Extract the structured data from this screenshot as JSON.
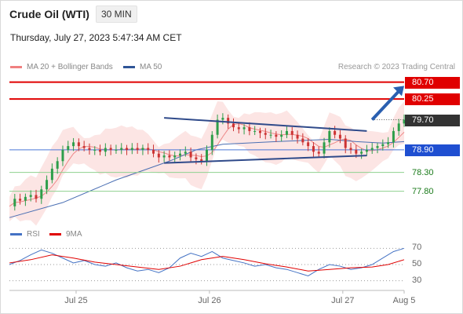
{
  "header": {
    "title": "Crude Oil (WTI)",
    "timeframe": "30 MIN",
    "datetime": "Thursday, July 27, 2023 5:47:34 AM CET"
  },
  "legend": {
    "items": [
      {
        "label": "MA 20 + Bollinger Bands",
        "color": "#f08080"
      },
      {
        "label": "MA 50",
        "color": "#2f5597"
      }
    ],
    "credit": "Research © 2023 Trading Central"
  },
  "rsi_legend": {
    "items": [
      {
        "label": "RSI",
        "color": "#4472c4"
      },
      {
        "label": "9MA",
        "color": "#e00000"
      }
    ]
  },
  "levels": [
    {
      "label": "80.70",
      "value": 80.7,
      "style": "red-box",
      "color": "#e00000"
    },
    {
      "label": "80.25",
      "value": 80.25,
      "style": "red-box",
      "color": "#e00000"
    },
    {
      "label": "79.70",
      "value": 79.7,
      "style": "dark-box",
      "color": "#333333"
    },
    {
      "label": "78.90",
      "value": 78.9,
      "style": "blue-box",
      "color": "#1f4fd1"
    },
    {
      "label": "78.30",
      "value": 78.3,
      "style": "green-text",
      "color": "#1a7a1a"
    },
    {
      "label": "77.80",
      "value": 77.8,
      "style": "green-text",
      "color": "#1a7a1a"
    }
  ],
  "chart_data": [
    {
      "type": "candlestick",
      "title": "Crude Oil (WTI)",
      "series_price_path": [
        [
          0,
          77.4
        ],
        [
          2,
          77.6
        ],
        [
          4,
          77.55
        ],
        [
          6,
          77.65
        ],
        [
          8,
          77.7
        ],
        [
          10,
          77.6
        ],
        [
          12,
          77.85
        ],
        [
          14,
          78.1
        ],
        [
          16,
          78.4
        ],
        [
          18,
          78.6
        ],
        [
          20,
          78.9
        ],
        [
          22,
          79.0
        ],
        [
          24,
          79.1
        ],
        [
          26,
          79.0
        ],
        [
          28,
          78.95
        ],
        [
          30,
          78.9
        ],
        [
          32,
          78.9
        ],
        [
          34,
          78.85
        ],
        [
          36,
          78.95
        ],
        [
          38,
          78.9
        ],
        [
          40,
          78.9
        ],
        [
          42,
          78.95
        ],
        [
          44,
          78.9
        ],
        [
          46,
          78.95
        ],
        [
          48,
          78.9
        ],
        [
          50,
          78.95
        ],
        [
          52,
          78.9
        ],
        [
          54,
          78.8
        ],
        [
          56,
          78.7
        ],
        [
          58,
          78.75
        ],
        [
          60,
          78.7
        ],
        [
          62,
          78.75
        ],
        [
          64,
          78.8
        ],
        [
          66,
          78.85
        ],
        [
          68,
          78.7
        ],
        [
          70,
          78.65
        ],
        [
          72,
          78.6
        ],
        [
          74,
          78.9
        ],
        [
          76,
          79.3
        ],
        [
          78,
          79.7
        ],
        [
          80,
          79.75
        ],
        [
          82,
          79.6
        ],
        [
          84,
          79.5
        ],
        [
          86,
          79.45
        ],
        [
          88,
          79.5
        ],
        [
          90,
          79.4
        ],
        [
          92,
          79.4
        ],
        [
          94,
          79.35
        ],
        [
          96,
          79.3
        ],
        [
          98,
          79.3
        ],
        [
          100,
          79.25
        ],
        [
          102,
          79.3
        ],
        [
          104,
          79.4
        ],
        [
          106,
          79.3
        ],
        [
          108,
          79.2
        ],
        [
          110,
          79.1
        ],
        [
          112,
          79.0
        ],
        [
          114,
          78.85
        ],
        [
          116,
          78.8
        ],
        [
          118,
          79.1
        ],
        [
          120,
          79.4
        ],
        [
          122,
          79.3
        ],
        [
          124,
          79.2
        ],
        [
          126,
          78.95
        ],
        [
          128,
          78.9
        ],
        [
          130,
          78.8
        ],
        [
          132,
          78.85
        ],
        [
          134,
          78.9
        ],
        [
          136,
          78.95
        ],
        [
          138,
          79.0
        ],
        [
          140,
          79.05
        ],
        [
          142,
          79.1
        ],
        [
          144,
          79.4
        ],
        [
          146,
          79.6
        ],
        [
          148,
          79.7
        ]
      ],
      "ma50_path": [
        [
          0,
          77.1
        ],
        [
          20,
          77.5
        ],
        [
          40,
          78.1
        ],
        [
          60,
          78.6
        ],
        [
          70,
          78.9
        ],
        [
          80,
          79.05
        ],
        [
          100,
          79.12
        ],
        [
          120,
          79.18
        ],
        [
          130,
          79.12
        ],
        [
          140,
          79.08
        ],
        [
          148,
          79.12
        ]
      ],
      "resistance_line": {
        "x": [
          58,
          134
        ],
        "y": [
          79.75,
          79.4
        ]
      },
      "support_line": {
        "x": [
          58,
          134
        ],
        "y": [
          78.55,
          78.75
        ]
      },
      "projection_arrow": {
        "x": [
          136,
          148
        ],
        "y": [
          79.7,
          80.6
        ]
      },
      "x_ticks": [
        {
          "label": "Jul 25",
          "x": 25
        },
        {
          "label": "Jul 26",
          "x": 75
        },
        {
          "label": "Jul 27",
          "x": 125
        },
        {
          "label": "Aug 5",
          "x": 148
        }
      ],
      "ylim": [
        77.0,
        80.9
      ],
      "grid": false,
      "legend_position": "top-left"
    },
    {
      "type": "line",
      "title": "RSI",
      "rsi_path": [
        [
          0,
          50
        ],
        [
          4,
          55
        ],
        [
          8,
          62
        ],
        [
          12,
          68
        ],
        [
          16,
          64
        ],
        [
          20,
          58
        ],
        [
          24,
          52
        ],
        [
          28,
          55
        ],
        [
          32,
          50
        ],
        [
          36,
          48
        ],
        [
          40,
          52
        ],
        [
          44,
          46
        ],
        [
          48,
          42
        ],
        [
          52,
          44
        ],
        [
          56,
          40
        ],
        [
          60,
          46
        ],
        [
          64,
          58
        ],
        [
          68,
          64
        ],
        [
          72,
          60
        ],
        [
          76,
          66
        ],
        [
          80,
          58
        ],
        [
          84,
          55
        ],
        [
          88,
          52
        ],
        [
          92,
          48
        ],
        [
          96,
          50
        ],
        [
          100,
          46
        ],
        [
          104,
          44
        ],
        [
          108,
          40
        ],
        [
          112,
          36
        ],
        [
          116,
          44
        ],
        [
          120,
          50
        ],
        [
          124,
          48
        ],
        [
          128,
          44
        ],
        [
          132,
          46
        ],
        [
          136,
          50
        ],
        [
          140,
          58
        ],
        [
          144,
          66
        ],
        [
          148,
          70
        ]
      ],
      "ma9_path": [
        [
          0,
          52
        ],
        [
          8,
          56
        ],
        [
          16,
          62
        ],
        [
          24,
          58
        ],
        [
          32,
          53
        ],
        [
          40,
          50
        ],
        [
          48,
          47
        ],
        [
          56,
          44
        ],
        [
          64,
          48
        ],
        [
          72,
          56
        ],
        [
          80,
          60
        ],
        [
          88,
          56
        ],
        [
          96,
          51
        ],
        [
          104,
          47
        ],
        [
          112,
          42
        ],
        [
          120,
          44
        ],
        [
          128,
          46
        ],
        [
          136,
          47
        ],
        [
          142,
          50
        ],
        [
          148,
          56
        ]
      ],
      "y_ticks": [
        70,
        50,
        30
      ],
      "ylim": [
        20,
        80
      ]
    }
  ]
}
